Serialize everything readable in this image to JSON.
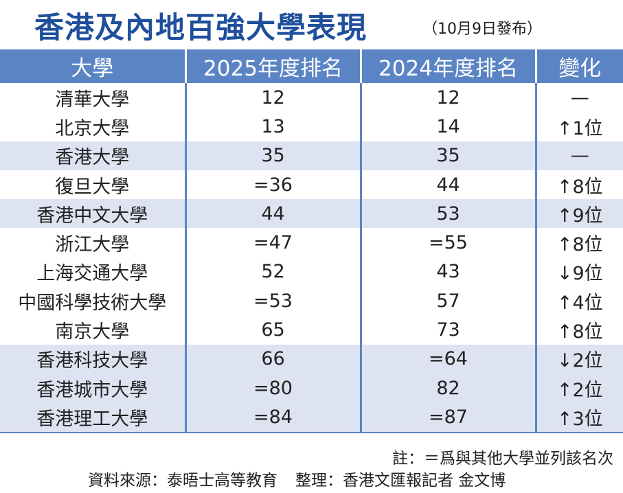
{
  "title": "香港及內地百強大學表現",
  "subtitle": "（10月9日發布）",
  "table": {
    "headers": [
      "大學",
      "2025年度排名",
      "2024年度排名",
      "變化"
    ],
    "rows": [
      {
        "name": "清華大學",
        "rank2025": "12",
        "rank2024": "12",
        "change": "—"
      },
      {
        "name": "北京大學",
        "rank2025": "13",
        "rank2024": "14",
        "change": "↑1位"
      },
      {
        "name": "香港大學",
        "rank2025": "35",
        "rank2024": "35",
        "change": "—"
      },
      {
        "name": "復旦大學",
        "rank2025": "=36",
        "rank2024": "44",
        "change": "↑8位"
      },
      {
        "name": "香港中文大學",
        "rank2025": "44",
        "rank2024": "53",
        "change": "↑9位"
      },
      {
        "name": "浙江大學",
        "rank2025": "=47",
        "rank2024": "=55",
        "change": "↑8位"
      },
      {
        "name": "上海交通大學",
        "rank2025": "52",
        "rank2024": "43",
        "change": "↓9位"
      },
      {
        "name": "中國科學技術大學",
        "rank2025": "=53",
        "rank2024": "57",
        "change": "↑4位"
      },
      {
        "name": "南京大學",
        "rank2025": "65",
        "rank2024": "73",
        "change": "↑8位"
      },
      {
        "name": "香港科技大學",
        "rank2025": "66",
        "rank2024": "=64",
        "change": "↓2位"
      },
      {
        "name": "香港城市大學",
        "rank2025": "=80",
        "rank2024": "82",
        "change": "↑2位"
      },
      {
        "name": "香港理工大學",
        "rank2025": "=84",
        "rank2024": "=87",
        "change": "↑3位"
      }
    ]
  },
  "note": "註：＝爲與其他大學並列該名次",
  "source": "資料來源：泰晤士高等教育",
  "editor": "整理：香港文匯報記者 金文博",
  "colors": {
    "header_bg": "#5b84c4",
    "shade_bg": "#dde3f1",
    "title": "#1f4f9c"
  }
}
